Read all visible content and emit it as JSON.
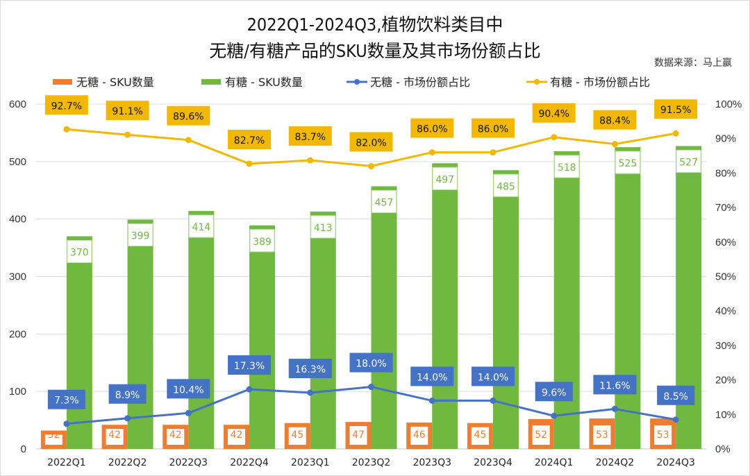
{
  "chart_data": {
    "type": "bar",
    "title": "2022Q1-2024Q3,植物饮料类目中",
    "subtitle": "无糖/有糖产品的SKU数量及其市场份额占比",
    "source": "数据来源：马上赢",
    "categories": [
      "2022Q1",
      "2022Q2",
      "2022Q3",
      "2022Q4",
      "2023Q1",
      "2023Q2",
      "2023Q3",
      "2023Q4",
      "2024Q1",
      "2024Q2",
      "2024Q3"
    ],
    "ylim": [
      0,
      600
    ],
    "y2lim": [
      0,
      100
    ],
    "yticks": [
      "0",
      "100",
      "200",
      "300",
      "400",
      "500",
      "600"
    ],
    "y2ticks": [
      "0%",
      "10%",
      "20%",
      "30%",
      "40%",
      "50%",
      "60%",
      "70%",
      "80%",
      "90%",
      "100%"
    ],
    "grid": true,
    "legend_position": "top",
    "series": [
      {
        "name": "无糖 - SKU数量",
        "kind": "bar",
        "axis": "left",
        "color": "#ED7D31",
        "values": [
          32,
          42,
          42,
          42,
          45,
          47,
          46,
          45,
          52,
          53,
          53
        ],
        "labels": [
          "32",
          "42",
          "42",
          "42",
          "45",
          "47",
          "46",
          "45",
          "52",
          "53",
          "53"
        ]
      },
      {
        "name": "有糖 - SKU数量",
        "kind": "bar",
        "axis": "left",
        "color": "#70B83F",
        "values": [
          370,
          399,
          414,
          389,
          413,
          457,
          497,
          485,
          518,
          525,
          527
        ],
        "labels": [
          "370",
          "399",
          "414",
          "389",
          "413",
          "457",
          "497",
          "485",
          "518",
          "525",
          "527"
        ]
      },
      {
        "name": "无糖 - 市场份额占比",
        "kind": "line",
        "axis": "right",
        "color": "#4472C4",
        "values": [
          7.3,
          8.9,
          10.4,
          17.3,
          16.3,
          18.0,
          14.0,
          14.0,
          9.6,
          11.6,
          8.5
        ],
        "labels": [
          "7.3%",
          "8.9%",
          "10.4%",
          "17.3%",
          "16.3%",
          "18.0%",
          "14.0%",
          "14.0%",
          "9.6%",
          "11.6%",
          "8.5%"
        ]
      },
      {
        "name": "有糖 - 市场份额占比",
        "kind": "line",
        "axis": "right",
        "color": "#F2B800",
        "values": [
          92.7,
          91.1,
          89.6,
          82.7,
          83.7,
          82.0,
          86.0,
          86.0,
          90.4,
          88.4,
          91.5
        ],
        "labels": [
          "92.7%",
          "91.1%",
          "89.6%",
          "82.7%",
          "83.7%",
          "82.0%",
          "86.0%",
          "86.0%",
          "90.4%",
          "88.4%",
          "91.5%"
        ]
      }
    ]
  }
}
